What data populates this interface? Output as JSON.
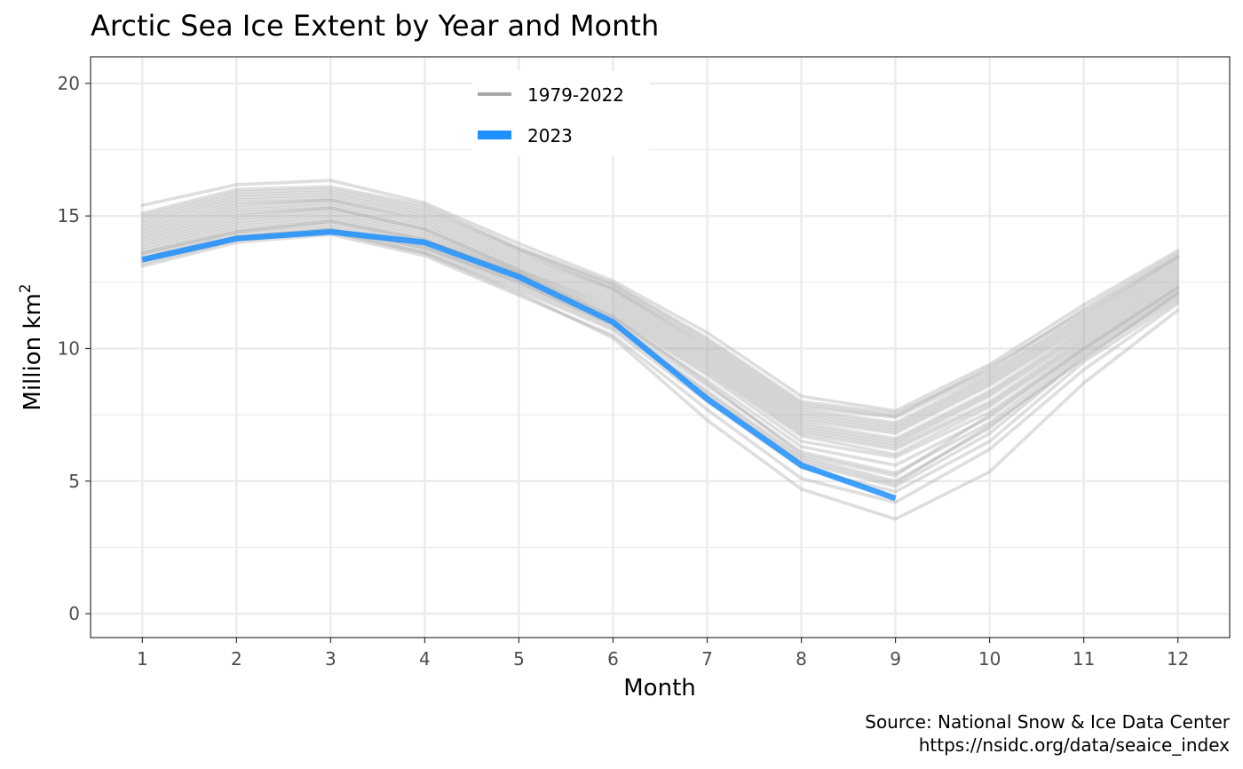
{
  "chart_data": {
    "type": "line",
    "title": "Arctic Sea Ice Extent by Year and Month",
    "xlabel": "Month",
    "ylabel_main": "Million km",
    "ylabel_sup": "2",
    "caption_lines": [
      "Source: National Snow & Ice Data Center",
      "https://nsidc.org/data/seaice_index"
    ],
    "x": [
      1,
      2,
      3,
      4,
      5,
      6,
      7,
      8,
      9,
      10,
      11,
      12
    ],
    "xlim": [
      0.45,
      12.55
    ],
    "ylim": [
      -0.9,
      21.0
    ],
    "x_ticks": [
      "1",
      "2",
      "3",
      "4",
      "5",
      "6",
      "7",
      "8",
      "9",
      "10",
      "11",
      "12"
    ],
    "y_ticks": [
      0,
      5,
      10,
      15,
      20
    ],
    "grid": true,
    "legend_position": "top-center",
    "legend": [
      {
        "label": "1979-2022",
        "color": "#a9a9a9"
      },
      {
        "label": "2023",
        "color": "#1e90ff"
      }
    ],
    "series": [
      {
        "values": [
          15.4,
          16.18,
          16.34,
          15.49,
          13.96,
          12.55,
          10.6,
          8.2,
          7.65,
          9.4,
          11.65,
          13.7
        ]
      },
      {
        "values": [
          15.1,
          16.0,
          16.1,
          15.4,
          13.8,
          12.45,
          10.4,
          8.0,
          7.55,
          9.2,
          11.5,
          13.6
        ]
      },
      {
        "values": [
          15.0,
          15.9,
          16.0,
          15.3,
          13.75,
          12.4,
          10.3,
          7.9,
          7.45,
          9.3,
          11.4,
          13.5
        ]
      },
      {
        "values": [
          14.9,
          15.8,
          15.9,
          15.2,
          13.7,
          12.3,
          10.2,
          7.8,
          7.4,
          9.1,
          11.3,
          13.45
        ]
      },
      {
        "values": [
          14.8,
          15.7,
          15.8,
          15.1,
          13.6,
          12.25,
          10.1,
          7.7,
          7.2,
          9.0,
          11.2,
          13.4
        ]
      },
      {
        "values": [
          14.7,
          15.6,
          15.7,
          15.0,
          13.5,
          12.2,
          10.0,
          7.6,
          7.1,
          8.9,
          11.1,
          13.3
        ]
      },
      {
        "values": [
          14.6,
          15.5,
          15.6,
          14.9,
          13.4,
          12.1,
          9.9,
          7.5,
          7.0,
          8.8,
          11.0,
          13.2
        ]
      },
      {
        "values": [
          14.5,
          15.4,
          15.6,
          14.8,
          13.3,
          12.0,
          9.8,
          7.4,
          6.9,
          8.7,
          10.9,
          13.1
        ]
      },
      {
        "values": [
          14.4,
          15.3,
          15.5,
          14.7,
          13.2,
          11.9,
          9.7,
          7.3,
          6.8,
          8.6,
          10.8,
          13.0
        ]
      },
      {
        "values": [
          14.3,
          15.2,
          15.4,
          14.6,
          13.1,
          11.8,
          9.6,
          7.2,
          6.6,
          8.4,
          10.7,
          12.9
        ]
      },
      {
        "values": [
          14.2,
          15.1,
          15.3,
          14.5,
          13.0,
          11.7,
          9.5,
          7.1,
          6.5,
          8.3,
          10.6,
          12.8
        ]
      },
      {
        "values": [
          14.1,
          15.0,
          15.3,
          14.5,
          12.95,
          11.6,
          9.4,
          7.0,
          6.4,
          8.2,
          10.5,
          12.7
        ]
      },
      {
        "values": [
          14.0,
          14.9,
          15.2,
          14.4,
          12.9,
          11.5,
          9.3,
          6.9,
          6.3,
          8.0,
          10.4,
          12.6
        ]
      },
      {
        "values": [
          13.9,
          14.8,
          15.1,
          14.3,
          12.85,
          11.4,
          9.2,
          6.8,
          6.2,
          7.9,
          10.3,
          12.5
        ]
      },
      {
        "values": [
          13.8,
          14.7,
          15.0,
          14.2,
          12.8,
          11.3,
          9.1,
          6.7,
          6.0,
          7.8,
          10.2,
          12.4
        ]
      },
      {
        "values": [
          13.7,
          14.6,
          14.9,
          14.1,
          12.7,
          11.2,
          9.0,
          6.5,
          5.9,
          7.6,
          10.1,
          12.3
        ]
      },
      {
        "values": [
          13.6,
          14.5,
          14.8,
          14.0,
          12.6,
          11.1,
          8.8,
          6.3,
          5.6,
          7.4,
          10.0,
          12.2
        ]
      },
      {
        "values": [
          13.5,
          14.4,
          14.7,
          13.9,
          12.5,
          11.0,
          8.6,
          6.1,
          5.3,
          7.2,
          9.9,
          12.1
        ]
      },
      {
        "values": [
          13.4,
          14.3,
          14.6,
          13.8,
          12.4,
          10.9,
          8.4,
          5.9,
          5.0,
          7.0,
          9.8,
          12.0
        ]
      },
      {
        "values": [
          13.3,
          14.2,
          14.5,
          13.7,
          12.3,
          10.8,
          8.2,
          5.7,
          4.8,
          6.8,
          9.7,
          11.9
        ]
      },
      {
        "values": [
          13.2,
          14.1,
          14.4,
          13.6,
          12.2,
          10.7,
          8.0,
          5.5,
          4.6,
          6.5,
          9.5,
          11.8
        ]
      },
      {
        "values": [
          13.1,
          14.0,
          14.3,
          13.5,
          12.0,
          10.5,
          7.7,
          5.1,
          4.2,
          6.2,
          9.2,
          11.7
        ]
      },
      {
        "values": [
          13.3,
          14.1,
          14.4,
          13.6,
          12.1,
          10.4,
          7.3,
          4.7,
          3.57,
          5.35,
          8.7,
          11.45
        ]
      },
      {
        "values": [
          13.4,
          14.2,
          14.5,
          13.8,
          12.5,
          10.9,
          8.3,
          5.8,
          4.9,
          7.1,
          9.6,
          12.1
        ]
      },
      {
        "values": [
          13.6,
          14.4,
          14.8,
          14.1,
          12.8,
          11.2,
          8.7,
          6.0,
          5.2,
          7.5,
          10.0,
          12.3
        ]
      }
    ],
    "series_2023": {
      "values": [
        13.35,
        14.15,
        14.4,
        14.0,
        12.7,
        11.0,
        8.1,
        5.6,
        4.35
      ]
    }
  }
}
